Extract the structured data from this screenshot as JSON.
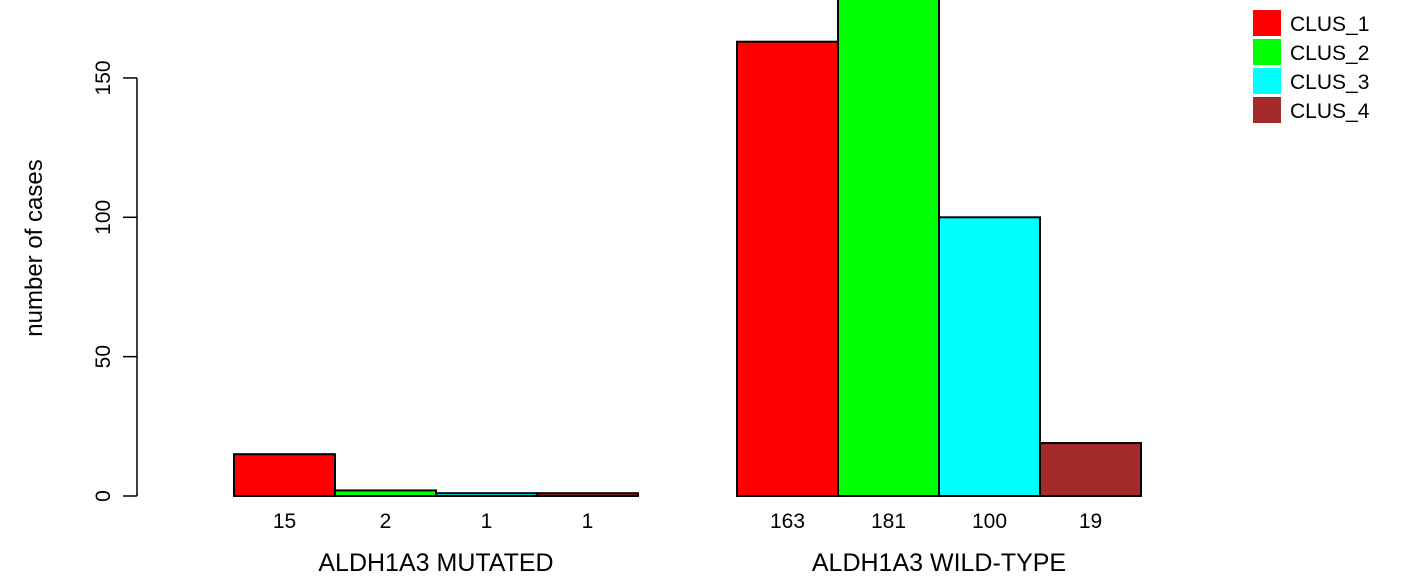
{
  "chart_data": {
    "type": "bar",
    "ylabel": "number of cases",
    "ylim": [
      0,
      180
    ],
    "yticks": [
      0,
      50,
      100,
      150
    ],
    "groups": [
      {
        "label": "ALDH1A3 MUTATED",
        "values": [
          15,
          2,
          1,
          1
        ],
        "value_labels": [
          "15",
          "2",
          "1",
          "1"
        ]
      },
      {
        "label": "ALDH1A3 WILD-TYPE",
        "values": [
          163,
          181,
          100,
          19
        ],
        "value_labels": [
          "163",
          "181",
          "100",
          "19"
        ]
      }
    ],
    "series": [
      {
        "name": "CLUS_1",
        "color": "#ff0000"
      },
      {
        "name": "CLUS_2",
        "color": "#00ff00"
      },
      {
        "name": "CLUS_3",
        "color": "#00ffff"
      },
      {
        "name": "CLUS_4",
        "color": "#a52a2a"
      }
    ],
    "legend_position": "top-right",
    "grid": false
  }
}
